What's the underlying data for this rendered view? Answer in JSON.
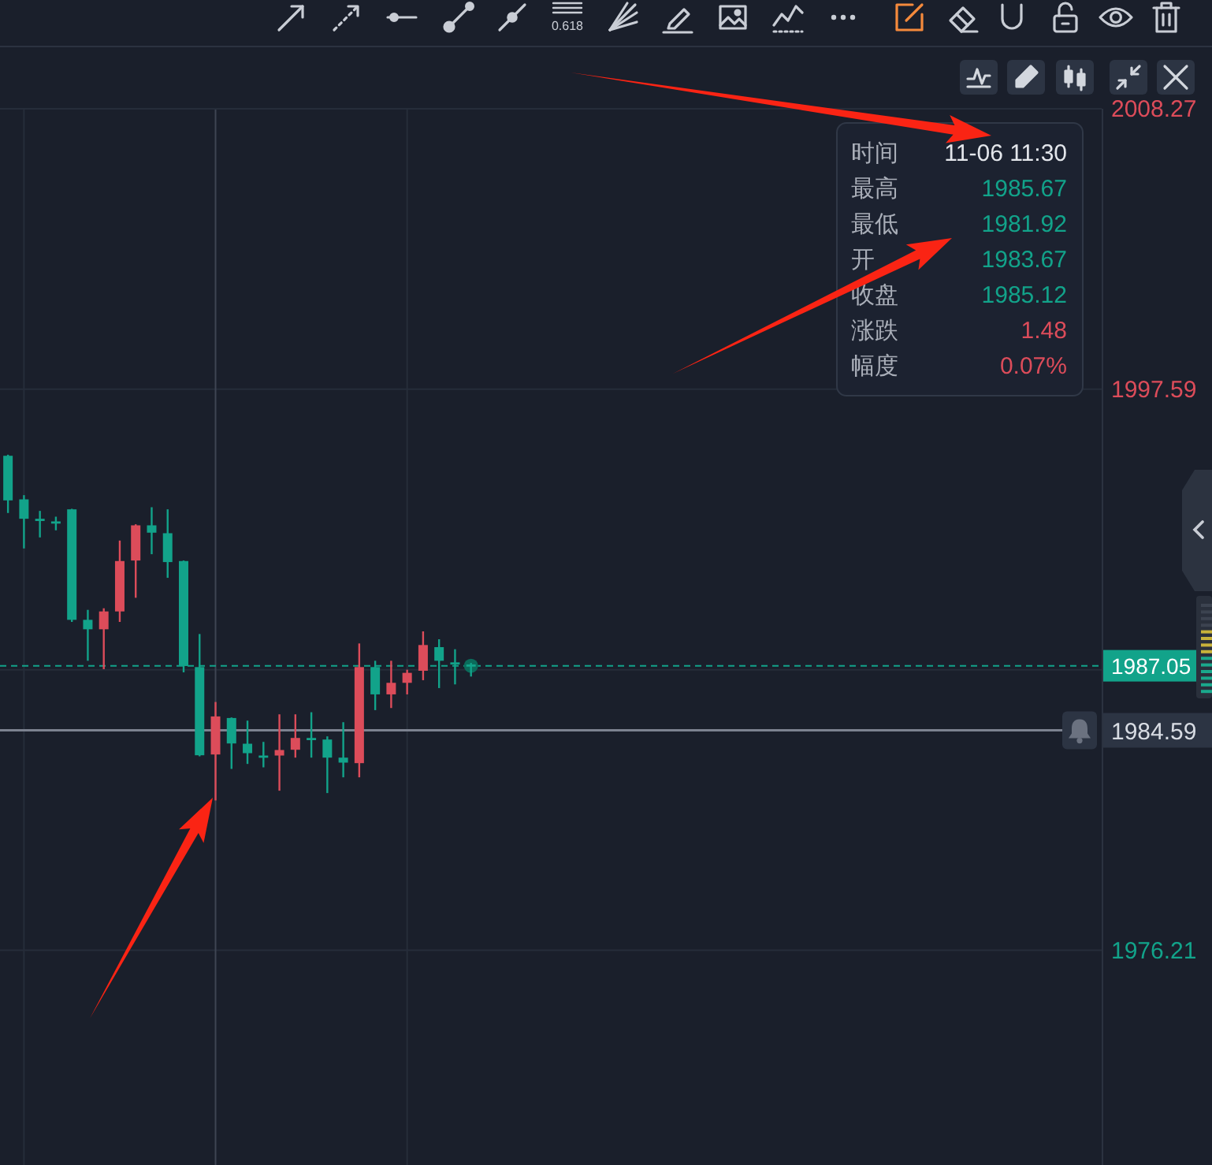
{
  "chart_data": {
    "type": "candlestick",
    "categories": [
      null,
      null,
      null,
      null,
      null,
      null,
      null,
      null,
      null,
      null,
      null,
      null,
      null,
      null,
      null,
      null,
      null,
      null,
      null,
      null,
      null,
      null,
      null,
      null,
      null,
      null,
      null,
      null,
      null,
      null,
      null,
      null,
      null,
      null,
      null,
      null,
      null,
      null,
      null,
      null,
      null,
      null,
      null,
      null,
      null,
      null,
      null,
      null,
      null,
      null,
      null,
      null,
      null,
      null,
      null,
      null,
      null,
      null,
      null,
      null,
      null,
      null,
      null,
      null,
      null,
      null,
      null,
      null,
      null
    ],
    "ohlc": [
      [
        1995.05,
        1995.09,
        1992.87,
        1993.35
      ],
      [
        1993.39,
        1993.55,
        1991.52,
        1992.65
      ],
      [
        1992.65,
        1992.95,
        1991.94,
        1992.6
      ],
      [
        1992.55,
        1992.73,
        1992.21,
        1992.5
      ],
      [
        1993.01,
        1993.03,
        1988.72,
        1988.8
      ],
      [
        1988.8,
        1989.18,
        1987.24,
        1988.44
      ],
      [
        1988.44,
        1989.24,
        1986.92,
        1989.12
      ],
      [
        1989.12,
        1991.82,
        1988.72,
        1991.04
      ],
      [
        1991.06,
        1992.44,
        1989.64,
        1992.4
      ],
      [
        1992.4,
        1993.09,
        1991.3,
        1992.12
      ],
      [
        1992.1,
        1993.01,
        1990.4,
        1991.0
      ],
      [
        1991.04,
        1991.06,
        1986.8,
        1987.04
      ],
      [
        1987.0,
        1988.26,
        1983.6,
        1983.64
      ],
      [
        1983.67,
        1985.67,
        1981.92,
        1985.12
      ],
      [
        1985.06,
        1985.08,
        1983.12,
        1984.09
      ],
      [
        1984.08,
        1984.96,
        1983.31,
        1983.72
      ],
      [
        1983.63,
        1984.15,
        1983.18,
        1983.58
      ],
      [
        1983.63,
        1985.2,
        1982.29,
        1983.84
      ],
      [
        1983.85,
        1985.2,
        1983.55,
        1984.3
      ],
      [
        1984.3,
        1985.28,
        1983.55,
        1984.25
      ],
      [
        1984.24,
        1984.36,
        1982.2,
        1983.55
      ],
      [
        1983.55,
        1984.9,
        1982.8,
        1983.36
      ],
      [
        1983.34,
        1987.9,
        1982.8,
        1987.0
      ],
      [
        1987.0,
        1987.24,
        1985.36,
        1985.96
      ],
      [
        1985.96,
        1987.24,
        1985.44,
        1986.4
      ],
      [
        1986.4,
        1986.9,
        1985.96,
        1986.78
      ],
      [
        1986.86,
        1988.36,
        1986.5,
        1987.84
      ],
      [
        1987.76,
        1988.06,
        1986.2,
        1987.24
      ],
      [
        1987.18,
        1987.68,
        1986.34,
        1987.14
      ],
      [
        1987.1,
        1987.16,
        1986.64,
        1987.05
      ],
      null,
      null,
      null,
      null,
      null,
      null,
      null,
      null,
      null,
      null,
      null,
      null,
      null,
      null,
      null,
      null,
      null,
      null,
      null,
      null,
      null,
      null,
      null,
      null,
      null,
      null,
      null,
      null,
      null,
      null,
      null,
      null,
      null,
      null,
      null,
      null,
      null,
      null,
      null
    ],
    "colors": [
      "#12a38a",
      "#12a38a",
      "#12a38a",
      "#12a38a",
      "#12a38a",
      "#12a38a",
      "#dc4c5a",
      "#dc4c5a",
      "#dc4c5a",
      "#12a38a",
      "#12a38a",
      "#12a38a",
      "#12a38a",
      "#dc4c5a",
      "#12a38a",
      "#12a38a",
      "#12a38a",
      "#dc4c5a",
      "#dc4c5a",
      "#12a38a",
      "#12a38a",
      "#12a38a",
      "#dc4c5a",
      "#12a38a",
      "#dc4c5a",
      "#dc4c5a",
      "#dc4c5a",
      "#12a38a",
      "#12a38a",
      "#12a38a",
      null,
      null,
      null,
      null,
      null,
      null,
      null,
      null,
      null,
      null,
      null,
      null,
      null,
      null,
      null,
      null,
      null,
      null,
      null,
      null,
      null,
      null,
      null,
      null,
      null,
      null,
      null,
      null,
      null,
      null,
      null,
      null,
      null,
      null,
      null,
      null,
      null,
      null,
      null
    ],
    "ylim": [
      1968.03,
      2008.27
    ],
    "yticks": [
      2008.27,
      1997.59,
      {
        "value": 1986.9,
        "label": null
      },
      1976.21
    ],
    "tick_labels": "y",
    "grid": true,
    "ref_lines": [
      {
        "axis": "y",
        "value": 1987.05,
        "label": "1987.05",
        "color": "#12a38a",
        "line_style": "dashed"
      },
      {
        "axis": "y",
        "value": 1984.59,
        "label": "1984.59",
        "color": "#7c8290",
        "line_style": "solid"
      }
    ],
    "annotations": [
      "0.618",
      "时间",
      "11-06 11:30",
      "最高",
      "1985.67",
      "最低",
      "1981.92",
      "开",
      "1983.67",
      "收盘",
      "1985.12",
      "涨跌",
      "1.48",
      "幅度",
      "0.07%"
    ]
  }
}
